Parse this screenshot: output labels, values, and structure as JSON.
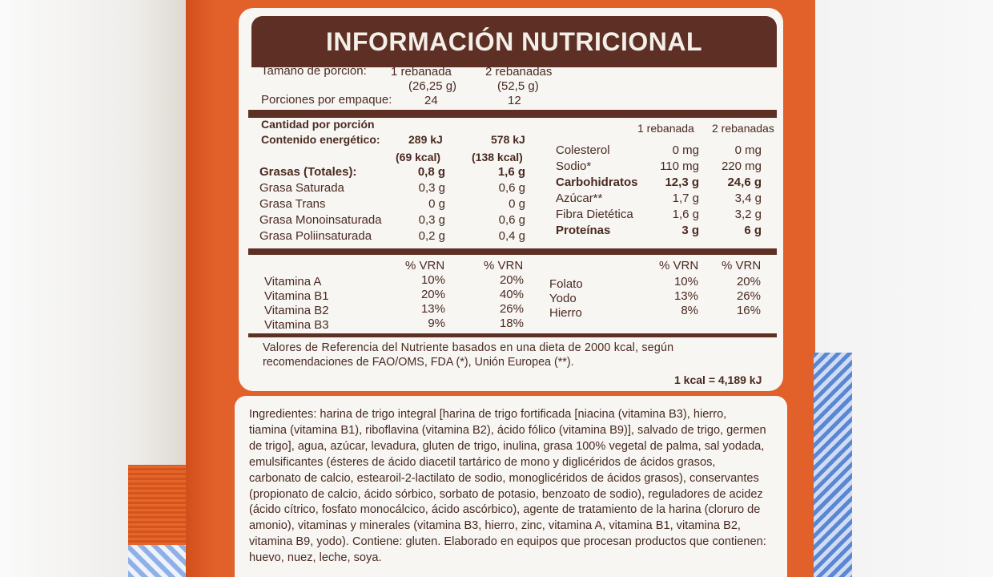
{
  "title": "INFORMACIÓN NUTRICIONAL",
  "serving": {
    "label": "Tamaño de porción:",
    "col1_line1": "1 rebanada",
    "col1_line2": "(26,25 g)",
    "col2_line1": "2 rebanadas",
    "col2_line2": "(52,5 g)",
    "servings_label": "Porciones por empaque:",
    "servings_col1": "24",
    "servings_col2": "12"
  },
  "energy": {
    "cantidad_label": "Cantidad por porción",
    "label": "Contenido energético:",
    "col1_kj": "289 kJ",
    "col1_kcal": "(69 kcal)",
    "col2_kj": "578 kJ",
    "col2_kcal": "(138 kcal)"
  },
  "right_headers": {
    "col1": "1 rebanada",
    "col2": "2 rebanadas"
  },
  "fats": [
    {
      "name": "Grasas (Totales):",
      "v1": "0,8 g",
      "v2": "1,6 g"
    },
    {
      "name": "Grasa Saturada",
      "v1": "0,3 g",
      "v2": "0,6 g"
    },
    {
      "name": "Grasa Trans",
      "v1": "0 g",
      "v2": "0 g"
    },
    {
      "name": "Grasa Monoinsaturada",
      "v1": "0,3 g",
      "v2": "0,6 g"
    },
    {
      "name": "Grasa Poliinsaturada",
      "v1": "0,2 g",
      "v2": "0,4 g"
    }
  ],
  "other_nutrients": [
    {
      "name": "Colesterol",
      "v1": "0 mg",
      "v2": "0 mg"
    },
    {
      "name": "Sodio*",
      "v1": "110 mg",
      "v2": "220 mg"
    },
    {
      "name": "Carbohidratos",
      "v1": "12,3 g",
      "v2": "24,6 g"
    },
    {
      "name": "Azúcar**",
      "v1": "1,7 g",
      "v2": "3,4 g"
    },
    {
      "name": "Fibra Dietética",
      "v1": "1,6 g",
      "v2": "3,2 g"
    },
    {
      "name": "Proteínas",
      "v1": "3 g",
      "v2": "6 g"
    }
  ],
  "vrn_header": "% VRN",
  "vitamins_left": [
    {
      "name": "Vitamina A",
      "v1": "10%",
      "v2": "20%"
    },
    {
      "name": "Vitamina B1",
      "v1": "20%",
      "v2": "40%"
    },
    {
      "name": "Vitamina B2",
      "v1": "13%",
      "v2": "26%"
    },
    {
      "name": "Vitamina B3",
      "v1": "9%",
      "v2": "18%"
    }
  ],
  "vitamins_right": [
    {
      "name": "Folato",
      "v1": "10%",
      "v2": "20%"
    },
    {
      "name": "Yodo",
      "v1": "13%",
      "v2": "26%"
    },
    {
      "name": "Hierro",
      "v1": "8%",
      "v2": "16%"
    }
  ],
  "footnote": {
    "line1": "Valores de Referencia del Nutriente basados en una dieta de 2000 kcal, según",
    "line2": "recomendaciones de FAO/OMS, FDA (*), Unión Europea (**).",
    "conversion": "1 kcal = 4,189 kJ"
  },
  "ingredients": [
    "Ingredientes: harina de trigo integral [harina de trigo fortificada [niacina (vitamina B3), hierro,",
    "tiamina (vitamina B1), riboflavina (vitamina B2), ácido fólico (vitamina B9)], salvado de trigo, germen",
    "de trigo], agua, azúcar, levadura, gluten de trigo, inulina, grasa 100% vegetal de palma, sal yodada,",
    "emulsificantes (ésteres de ácido diacetil tartárico de mono y diglicéridos de ácidos grasos,",
    "carbonato de calcio, estearoil-2-lactilato de sodio, monoglicéridos de ácidos grasos), conservantes",
    "(propionato de calcio, ácido sórbico, sorbato de potasio, benzoato de sodio), reguladores de acidez",
    "(ácido cítrico, fosfato monocálcico, ácido ascórbico), agente de tratamiento de la harina (cloruro de",
    "amonio), vitaminas y minerales (vitamina B3, hierro, zinc, vitamina A, vitamina B1, vitamina B2,",
    "vitamina B9, yodo). Contiene: gluten. Elaborado en equipos que procesan productos que contienen:",
    "huevo, nuez, leche, soya."
  ]
}
